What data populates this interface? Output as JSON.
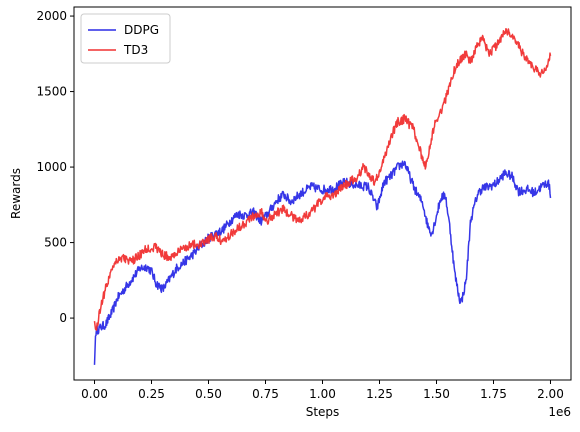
{
  "chart_data": {
    "type": "line",
    "title": "",
    "xlabel": "Steps",
    "ylabel": "Rewards",
    "x_offset_label": "1e6",
    "xlim": [
      -0.09,
      2.09
    ],
    "ylim": [
      -410,
      2060
    ],
    "x_ticks": [
      0.0,
      0.25,
      0.5,
      0.75,
      1.0,
      1.25,
      1.5,
      1.75,
      2.0
    ],
    "x_tick_labels": [
      "0.00",
      "0.25",
      "0.50",
      "0.75",
      "1.00",
      "1.25",
      "1.50",
      "1.75",
      "2.00"
    ],
    "y_ticks": [
      0,
      500,
      1000,
      1500,
      2000
    ],
    "y_tick_labels": [
      "0",
      "500",
      "1000",
      "1500",
      "2000"
    ],
    "grid": false,
    "legend_position": "top-left",
    "series": [
      {
        "name": "DDPG",
        "color": "#2b2be6",
        "x": [
          0.0,
          0.005,
          0.01,
          0.03,
          0.05,
          0.08,
          0.1,
          0.13,
          0.16,
          0.2,
          0.23,
          0.25,
          0.27,
          0.3,
          0.33,
          0.36,
          0.4,
          0.43,
          0.46,
          0.5,
          0.53,
          0.56,
          0.6,
          0.63,
          0.66,
          0.7,
          0.73,
          0.76,
          0.8,
          0.83,
          0.86,
          0.9,
          0.95,
          1.0,
          1.05,
          1.1,
          1.15,
          1.2,
          1.24,
          1.27,
          1.3,
          1.33,
          1.36,
          1.4,
          1.42,
          1.44,
          1.46,
          1.48,
          1.5,
          1.52,
          1.54,
          1.56,
          1.58,
          1.6,
          1.61,
          1.63,
          1.65,
          1.68,
          1.7,
          1.73,
          1.76,
          1.8,
          1.83,
          1.86,
          1.9,
          1.93,
          1.96,
          1.99,
          2.0
        ],
        "y": [
          -310,
          -95,
          -80,
          -60,
          -40,
          50,
          130,
          190,
          250,
          330,
          340,
          310,
          230,
          190,
          260,
          330,
          380,
          420,
          470,
          530,
          560,
          580,
          650,
          690,
          680,
          700,
          640,
          690,
          780,
          820,
          770,
          820,
          870,
          850,
          860,
          900,
          880,
          870,
          730,
          900,
          940,
          1000,
          1030,
          870,
          810,
          760,
          620,
          560,
          680,
          800,
          810,
          580,
          300,
          130,
          110,
          250,
          650,
          820,
          860,
          870,
          890,
          960,
          940,
          840,
          850,
          830,
          870,
          900,
          820
        ]
      },
      {
        "name": "TD3",
        "color": "#f03030",
        "x": [
          0.0,
          0.005,
          0.01,
          0.03,
          0.05,
          0.08,
          0.1,
          0.13,
          0.16,
          0.2,
          0.23,
          0.27,
          0.3,
          0.33,
          0.36,
          0.4,
          0.43,
          0.46,
          0.5,
          0.53,
          0.56,
          0.6,
          0.63,
          0.66,
          0.7,
          0.73,
          0.76,
          0.8,
          0.83,
          0.86,
          0.9,
          0.95,
          1.0,
          1.05,
          1.1,
          1.15,
          1.18,
          1.2,
          1.23,
          1.25,
          1.28,
          1.3,
          1.33,
          1.36,
          1.4,
          1.43,
          1.45,
          1.48,
          1.5,
          1.53,
          1.56,
          1.58,
          1.6,
          1.63,
          1.65,
          1.68,
          1.7,
          1.73,
          1.76,
          1.78,
          1.8,
          1.83,
          1.86,
          1.9,
          1.93,
          1.96,
          1.98,
          2.0
        ],
        "y": [
          -20,
          -80,
          -60,
          100,
          200,
          350,
          390,
          400,
          370,
          420,
          460,
          470,
          420,
          400,
          430,
          470,
          490,
          480,
          520,
          540,
          510,
          560,
          600,
          630,
          680,
          700,
          650,
          700,
          720,
          680,
          650,
          700,
          790,
          820,
          880,
          930,
          1000,
          960,
          900,
          960,
          1100,
          1200,
          1300,
          1320,
          1250,
          1100,
          1000,
          1200,
          1320,
          1400,
          1550,
          1650,
          1700,
          1750,
          1700,
          1800,
          1850,
          1750,
          1800,
          1850,
          1900,
          1880,
          1800,
          1700,
          1650,
          1620,
          1650,
          1750
        ]
      }
    ]
  }
}
